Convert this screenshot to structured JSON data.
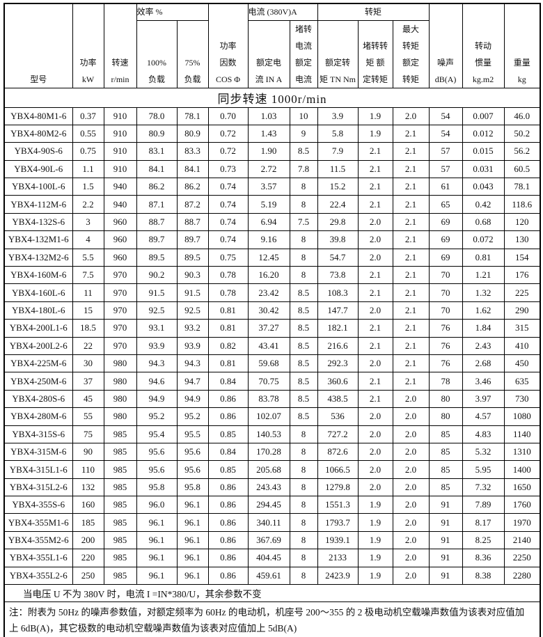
{
  "table": {
    "header": {
      "model": "型号",
      "power": "功率\nkW",
      "speed": "转速\nr/min",
      "efficiency_group": "效率  %",
      "load_100": "100%\n负载",
      "load_75": "75%\n负载",
      "power_factor": "功率\n因数\nCOS Φ",
      "current_group": "电流  (380V)A",
      "rated_current": "额定电\n流 IN A",
      "locked_current_ratio": "堵转\n电流\n额定\n电流",
      "torque_group": "转矩",
      "rated_torque": "额定转\n矩 TN Nm",
      "locked_torque_ratio": "堵转转\n矩 额\n定转矩",
      "max_torque_ratio": "最大\n转矩\n额定\n转矩",
      "noise": "噪声\ndB(A)",
      "inertia": "转动\n惯量\nkg.m2",
      "weight": "重量\nkg"
    },
    "sync_banner": "同步转速 1000r/min",
    "column_keys": [
      "model",
      "power_kw",
      "speed_rpm",
      "eff_100",
      "eff_75",
      "cos_phi",
      "rated_current",
      "locked_current_ratio",
      "rated_torque",
      "locked_torque_ratio",
      "max_torque_ratio",
      "noise_db",
      "inertia_kgm2",
      "weight_kg"
    ],
    "rows": [
      [
        "YBX4-80M1-6",
        "0.37",
        "910",
        "78.0",
        "78.1",
        "0.70",
        "1.03",
        "10",
        "3.9",
        "1.9",
        "2.0",
        "54",
        "0.007",
        "46.0"
      ],
      [
        "YBX4-80M2-6",
        "0.55",
        "910",
        "80.9",
        "80.9",
        "0.72",
        "1.43",
        "9",
        "5.8",
        "1.9",
        "2.1",
        "54",
        "0.012",
        "50.2"
      ],
      [
        "YBX4-90S-6",
        "0.75",
        "910",
        "83.1",
        "83.3",
        "0.72",
        "1.90",
        "8.5",
        "7.9",
        "2.1",
        "2.1",
        "57",
        "0.015",
        "56.2"
      ],
      [
        "YBX4-90L-6",
        "1.1",
        "910",
        "84.1",
        "84.1",
        "0.73",
        "2.72",
        "7.8",
        "11.5",
        "2.1",
        "2.1",
        "57",
        "0.031",
        "60.5"
      ],
      [
        "YBX4-100L-6",
        "1.5",
        "940",
        "86.2",
        "86.2",
        "0.74",
        "3.57",
        "8",
        "15.2",
        "2.1",
        "2.1",
        "61",
        "0.043",
        "78.1"
      ],
      [
        "YBX4-112M-6",
        "2.2",
        "940",
        "87.1",
        "87.2",
        "0.74",
        "5.19",
        "8",
        "22.4",
        "2.1",
        "2.1",
        "65",
        "0.42",
        "118.6"
      ],
      [
        "YBX4-132S-6",
        "3",
        "960",
        "88.7",
        "88.7",
        "0.74",
        "6.94",
        "7.5",
        "29.8",
        "2.0",
        "2.1",
        "69",
        "0.68",
        "120"
      ],
      [
        "YBX4-132M1-6",
        "4",
        "960",
        "89.7",
        "89.7",
        "0.74",
        "9.16",
        "8",
        "39.8",
        "2.0",
        "2.1",
        "69",
        "0.072",
        "130"
      ],
      [
        "YBX4-132M2-6",
        "5.5",
        "960",
        "89.5",
        "89.5",
        "0.75",
        "12.45",
        "8",
        "54.7",
        "2.0",
        "2.1",
        "69",
        "0.81",
        "154"
      ],
      [
        "YBX4-160M-6",
        "7.5",
        "970",
        "90.2",
        "90.3",
        "0.78",
        "16.20",
        "8",
        "73.8",
        "2.1",
        "2.1",
        "70",
        "1.21",
        "176"
      ],
      [
        "YBX4-160L-6",
        "11",
        "970",
        "91.5",
        "91.5",
        "0.78",
        "23.42",
        "8.5",
        "108.3",
        "2.1",
        "2.1",
        "70",
        "1.32",
        "225"
      ],
      [
        "YBX4-180L-6",
        "15",
        "970",
        "92.5",
        "92.5",
        "0.81",
        "30.42",
        "8.5",
        "147.7",
        "2.0",
        "2.1",
        "70",
        "1.62",
        "290"
      ],
      [
        "YBX4-200L1-6",
        "18.5",
        "970",
        "93.1",
        "93.2",
        "0.81",
        "37.27",
        "8.5",
        "182.1",
        "2.1",
        "2.1",
        "76",
        "1.84",
        "315"
      ],
      [
        "YBX4-200L2-6",
        "22",
        "970",
        "93.9",
        "93.9",
        "0.82",
        "43.41",
        "8.5",
        "216.6",
        "2.1",
        "2.1",
        "76",
        "2.43",
        "410"
      ],
      [
        "YBX4-225M-6",
        "30",
        "980",
        "94.3",
        "94.3",
        "0.81",
        "59.68",
        "8.5",
        "292.3",
        "2.0",
        "2.1",
        "76",
        "2.68",
        "450"
      ],
      [
        "YBX4-250M-6",
        "37",
        "980",
        "94.6",
        "94.7",
        "0.84",
        "70.75",
        "8.5",
        "360.6",
        "2.1",
        "2.1",
        "78",
        "3.46",
        "635"
      ],
      [
        "YBX4-280S-6",
        "45",
        "980",
        "94.9",
        "94.9",
        "0.86",
        "83.78",
        "8.5",
        "438.5",
        "2.1",
        "2.0",
        "80",
        "3.97",
        "730"
      ],
      [
        "YBX4-280M-6",
        "55",
        "980",
        "95.2",
        "95.2",
        "0.86",
        "102.07",
        "8.5",
        "536",
        "2.0",
        "2.0",
        "80",
        "4.57",
        "1080"
      ],
      [
        "YBX4-315S-6",
        "75",
        "985",
        "95.4",
        "95.5",
        "0.85",
        "140.53",
        "8",
        "727.2",
        "2.0",
        "2.0",
        "85",
        "4.83",
        "1140"
      ],
      [
        "YBX4-315M-6",
        "90",
        "985",
        "95.6",
        "95.6",
        "0.84",
        "170.28",
        "8",
        "872.6",
        "2.0",
        "2.0",
        "85",
        "5.32",
        "1310"
      ],
      [
        "YBX4-315L1-6",
        "110",
        "985",
        "95.6",
        "95.6",
        "0.85",
        "205.68",
        "8",
        "1066.5",
        "2.0",
        "2.0",
        "85",
        "5.95",
        "1400"
      ],
      [
        "YBX4-315L2-6",
        "132",
        "985",
        "95.8",
        "95.8",
        "0.86",
        "243.43",
        "8",
        "1279.8",
        "2.0",
        "2.0",
        "85",
        "7.32",
        "1650"
      ],
      [
        "YBX4-355S-6",
        "160",
        "985",
        "96.0",
        "96.1",
        "0.86",
        "294.45",
        "8",
        "1551.3",
        "1.9",
        "2.0",
        "91",
        "7.89",
        "1760"
      ],
      [
        "YBX4-355M1-6",
        "185",
        "985",
        "96.1",
        "96.1",
        "0.86",
        "340.11",
        "8",
        "1793.7",
        "1.9",
        "2.0",
        "91",
        "8.17",
        "1970"
      ],
      [
        "YBX4-355M2-6",
        "200",
        "985",
        "96.1",
        "96.1",
        "0.86",
        "367.69",
        "8",
        "1939.1",
        "1.9",
        "2.0",
        "91",
        "8.25",
        "2140"
      ],
      [
        "YBX4-355L1-6",
        "220",
        "985",
        "96.1",
        "96.1",
        "0.86",
        "404.45",
        "8",
        "2133",
        "1.9",
        "2.0",
        "91",
        "8.36",
        "2250"
      ],
      [
        "YBX4-355L2-6",
        "250",
        "985",
        "96.1",
        "96.1",
        "0.86",
        "459.61",
        "8",
        "2423.9",
        "1.9",
        "2.0",
        "91",
        "8.38",
        "2280"
      ]
    ],
    "notes": {
      "voltage_note": "当电压 U 不为 380V 时，电流 I =IN*380/U，其余参数不变",
      "noise_note_line1": "注：附表为 50Hz 的噪声参数值，对额定频率为 60Hz 的电动机，机座号 200～355 的 2 极电动机空载噪声数值为该表对应值加",
      "noise_note_line2": "上 6dB(A)，其它极数的电动机空载噪声数值为该表对应值加上 5dB(A)"
    }
  }
}
